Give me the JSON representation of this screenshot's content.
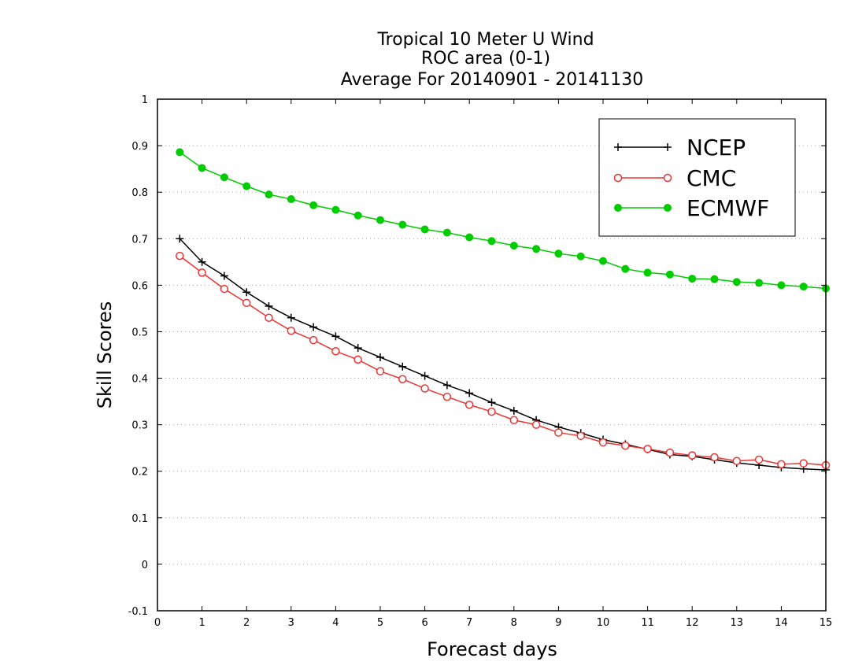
{
  "chart_data": {
    "type": "line",
    "title": [
      "Tropical 10 Meter U Wind",
      "ROC area (0-1)",
      "Average For 20140901 - 20141130"
    ],
    "xlabel": "Forecast days",
    "ylabel": "Skill Scores",
    "xlim": [
      0,
      15
    ],
    "ylim": [
      -0.1,
      1
    ],
    "xticks": [
      0,
      1,
      2,
      3,
      4,
      5,
      6,
      7,
      8,
      9,
      10,
      11,
      12,
      13,
      14,
      15
    ],
    "yticks": [
      -0.1,
      0,
      0.1,
      0.2,
      0.3,
      0.4,
      0.5,
      0.6,
      0.7,
      0.8,
      0.9,
      1
    ],
    "ytick_labels": [
      "-0.1",
      "0",
      "0.1",
      "0.2",
      "0.3",
      "0.4",
      "0.5",
      "0.6",
      "0.7",
      "0.8",
      "0.9",
      "1"
    ],
    "grid": "horizontal dotted",
    "legend_position": "top-right",
    "x": [
      0.5,
      1,
      1.5,
      2,
      2.5,
      3,
      3.5,
      4,
      4.5,
      5,
      5.5,
      6,
      6.5,
      7,
      7.5,
      8,
      8.5,
      9,
      9.5,
      10,
      10.5,
      11,
      11.5,
      12,
      12.5,
      13,
      13.5,
      14,
      14.5,
      15
    ],
    "series": [
      {
        "name": "NCEP",
        "color": "#000000",
        "marker": "plus",
        "values": [
          0.7,
          0.65,
          0.62,
          0.585,
          0.555,
          0.53,
          0.51,
          0.49,
          0.465,
          0.445,
          0.425,
          0.405,
          0.385,
          0.368,
          0.348,
          0.33,
          0.31,
          0.295,
          0.282,
          0.268,
          0.258,
          0.247,
          0.236,
          0.232,
          0.225,
          0.218,
          0.213,
          0.208,
          0.205,
          0.203
        ]
      },
      {
        "name": "CMC",
        "color": "#ee3333",
        "marker": "open-circle",
        "values": [
          0.663,
          0.627,
          0.592,
          0.562,
          0.53,
          0.502,
          0.482,
          0.458,
          0.44,
          0.415,
          0.398,
          0.378,
          0.36,
          0.343,
          0.328,
          0.31,
          0.3,
          0.283,
          0.276,
          0.262,
          0.255,
          0.248,
          0.24,
          0.234,
          0.23,
          0.222,
          0.225,
          0.215,
          0.217,
          0.213
        ]
      },
      {
        "name": "ECMWF",
        "color": "#00cc00",
        "marker": "filled-circle",
        "values": [
          0.886,
          0.852,
          0.832,
          0.813,
          0.795,
          0.785,
          0.772,
          0.762,
          0.75,
          0.74,
          0.73,
          0.72,
          0.713,
          0.703,
          0.695,
          0.685,
          0.678,
          0.668,
          0.662,
          0.652,
          0.635,
          0.627,
          0.623,
          0.614,
          0.613,
          0.607,
          0.605,
          0.6,
          0.597,
          0.593
        ]
      }
    ]
  }
}
